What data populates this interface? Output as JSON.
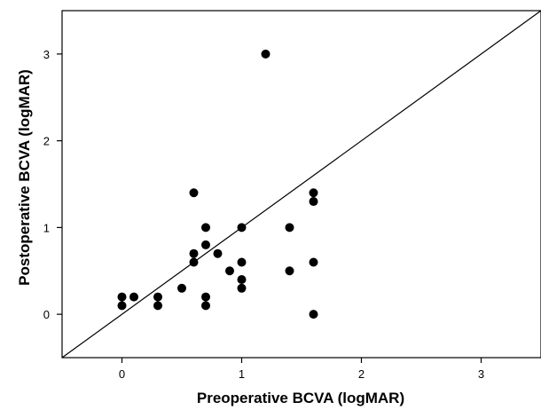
{
  "chart_data": {
    "type": "scatter",
    "title": "",
    "xlabel": "Preoperative BCVA (logMAR)",
    "ylabel": "Postoperative BCVA (logMAR)",
    "xlim": [
      -0.5,
      3.5
    ],
    "ylim": [
      -0.5,
      3.5
    ],
    "x_ticks": [
      0,
      1,
      2,
      3
    ],
    "y_ticks": [
      0,
      1,
      2,
      3
    ],
    "x_tick_labels": [
      "0",
      "1",
      "2",
      "3"
    ],
    "y_tick_labels": [
      "0",
      "1",
      "2",
      "3"
    ],
    "grid": false,
    "reference_line": "y = x",
    "point_color": "#000000",
    "points": [
      {
        "x": 0.0,
        "y": 0.2
      },
      {
        "x": 0.0,
        "y": 0.1
      },
      {
        "x": 0.1,
        "y": 0.2
      },
      {
        "x": 0.3,
        "y": 0.2
      },
      {
        "x": 0.3,
        "y": 0.1
      },
      {
        "x": 0.5,
        "y": 0.3
      },
      {
        "x": 0.6,
        "y": 1.4
      },
      {
        "x": 0.6,
        "y": 0.7
      },
      {
        "x": 0.6,
        "y": 0.6
      },
      {
        "x": 0.7,
        "y": 1.0
      },
      {
        "x": 0.7,
        "y": 0.8
      },
      {
        "x": 0.7,
        "y": 0.2
      },
      {
        "x": 0.7,
        "y": 0.1
      },
      {
        "x": 0.8,
        "y": 0.7
      },
      {
        "x": 0.9,
        "y": 0.5
      },
      {
        "x": 1.0,
        "y": 1.0
      },
      {
        "x": 1.0,
        "y": 0.6
      },
      {
        "x": 1.0,
        "y": 0.4
      },
      {
        "x": 1.0,
        "y": 0.3
      },
      {
        "x": 1.2,
        "y": 3.0
      },
      {
        "x": 1.4,
        "y": 1.0
      },
      {
        "x": 1.4,
        "y": 0.5
      },
      {
        "x": 1.6,
        "y": 1.4
      },
      {
        "x": 1.6,
        "y": 1.3
      },
      {
        "x": 1.6,
        "y": 0.6
      },
      {
        "x": 1.6,
        "y": 0.0
      }
    ]
  }
}
